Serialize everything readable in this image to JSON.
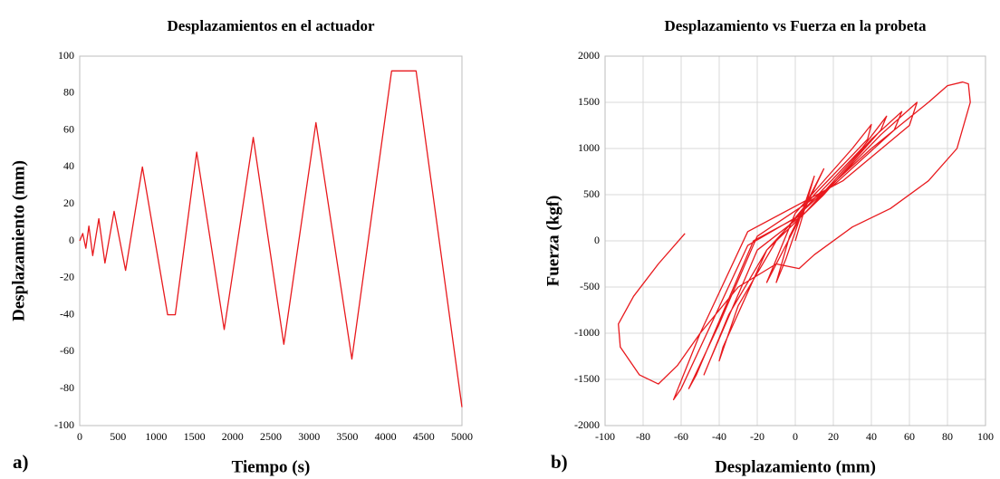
{
  "chart_data": [
    {
      "type": "line",
      "title": "Desplazamientos en el actuador",
      "panel": "a)",
      "x_label": "Tiempo (s)",
      "y_label": "Desplazamiento (mm)",
      "x": [
        0,
        40,
        80,
        120,
        170,
        250,
        330,
        450,
        600,
        820,
        1150,
        1250,
        1530,
        1890,
        2270,
        2670,
        3090,
        3560,
        4080,
        4400,
        5000
      ],
      "series": [
        {
          "name": "Desplazamiento",
          "color": "#e8191d",
          "values": [
            0,
            4,
            -4,
            8,
            -8,
            12,
            -12,
            16,
            -16,
            40,
            -40,
            -40,
            48,
            -48,
            56,
            -56,
            64,
            -64,
            92,
            92,
            -90
          ]
        }
      ],
      "xlim": [
        0,
        5000
      ],
      "xticks": [
        0,
        500,
        1000,
        1500,
        2000,
        2500,
        3000,
        3500,
        4000,
        4500,
        5000
      ],
      "ylim": [
        -100,
        100
      ],
      "yticks": [
        -100,
        -80,
        -60,
        -40,
        -20,
        0,
        20,
        40,
        60,
        80,
        100
      ],
      "grid": false
    },
    {
      "type": "line",
      "title": "Desplazamiento vs Fuerza en la probeta",
      "panel": "b)",
      "x_label": "Desplazamiento (mm)",
      "y_label": "Fuerza (kgf)",
      "x": [
        0,
        5,
        10,
        5,
        -5,
        -10,
        -3,
        15,
        5,
        -15,
        0,
        30,
        40,
        38,
        10,
        -10,
        -30,
        -40,
        -38,
        -15,
        5,
        35,
        48,
        45,
        15,
        -15,
        -35,
        -48,
        -45,
        -20,
        5,
        40,
        56,
        52,
        20,
        -20,
        -40,
        -56,
        -52,
        -22,
        5,
        45,
        64,
        60,
        25,
        -25,
        -50,
        -64,
        -60,
        -25,
        0,
        40,
        70,
        80,
        88,
        91,
        92,
        85,
        70,
        50,
        30,
        10,
        2,
        -10,
        -30,
        -50,
        -62,
        -72,
        -82,
        -92,
        -93,
        -85,
        -72,
        -58
      ],
      "series": [
        {
          "name": "Fuerza",
          "color": "#e8191d",
          "values": [
            0,
            350,
            700,
            400,
            -200,
            -450,
            50,
            780,
            350,
            -450,
            300,
            1000,
            1260,
            1100,
            500,
            0,
            -700,
            -1300,
            -1150,
            -100,
            350,
            1000,
            1350,
            1200,
            500,
            -100,
            -800,
            -1450,
            -1300,
            -100,
            300,
            1100,
            1400,
            1200,
            600,
            50,
            -900,
            -1600,
            -1450,
            0,
            300,
            1150,
            1500,
            1250,
            650,
            100,
            -1000,
            -1720,
            -1600,
            -50,
            250,
            1000,
            1500,
            1680,
            1720,
            1700,
            1500,
            1000,
            650,
            350,
            150,
            -150,
            -300,
            -250,
            -500,
            -1000,
            -1350,
            -1550,
            -1450,
            -1150,
            -900,
            -600,
            -250,
            80
          ]
        }
      ],
      "xlim": [
        -100,
        100
      ],
      "xticks": [
        -100,
        -80,
        -60,
        -40,
        -20,
        0,
        20,
        40,
        60,
        80,
        100
      ],
      "ylim": [
        -2000,
        2000
      ],
      "yticks": [
        -2000,
        -1500,
        -1000,
        -500,
        0,
        500,
        1000,
        1500,
        2000
      ],
      "grid": true
    }
  ]
}
